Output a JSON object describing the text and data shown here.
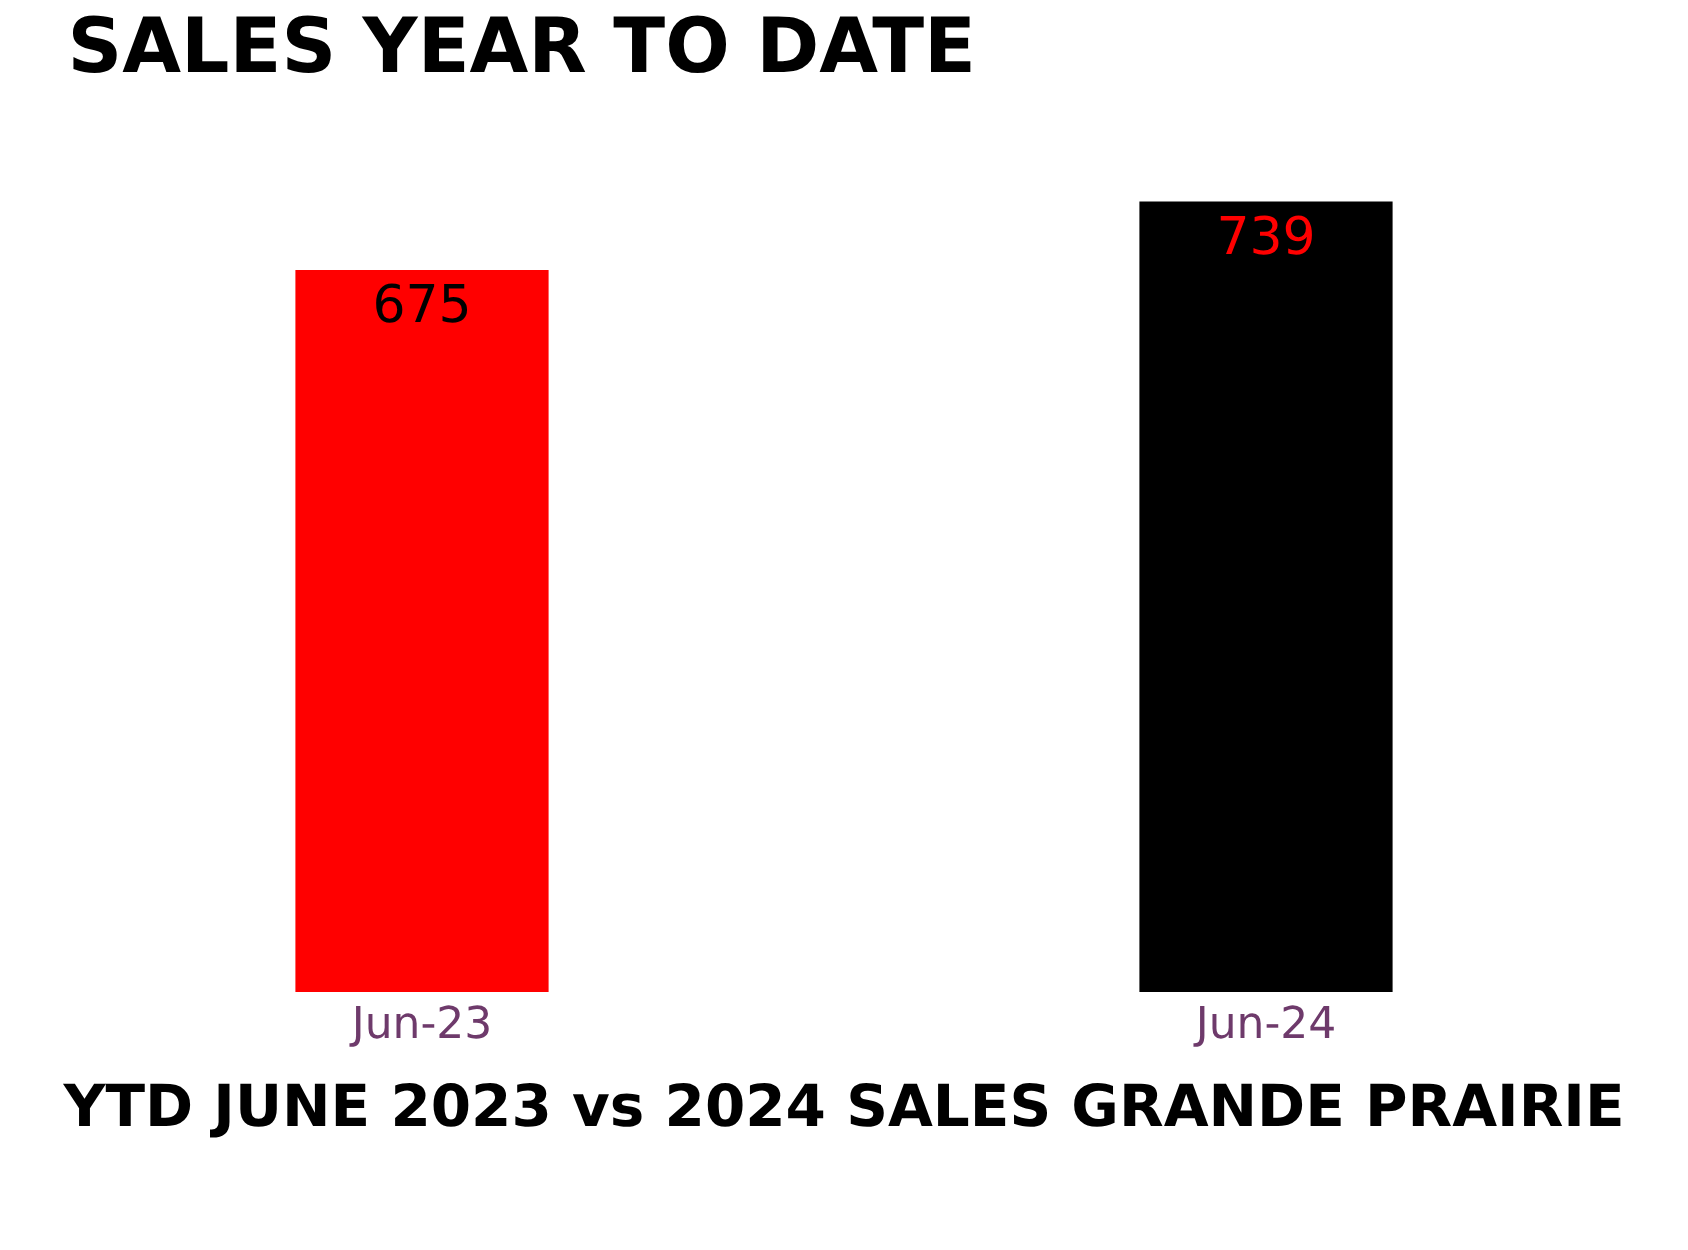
{
  "chart_data": {
    "type": "bar",
    "title": "SALES YEAR TO DATE",
    "xlabel": "YTD JUNE 2023 vs 2024 SALES GRANDE PRAIRIE",
    "categories": [
      "Jun-23",
      "Jun-24"
    ],
    "values": [
      675,
      739
    ],
    "colors": [
      "#ff0000",
      "#000000"
    ],
    "tick_labels": "x",
    "data_labels": true
  }
}
